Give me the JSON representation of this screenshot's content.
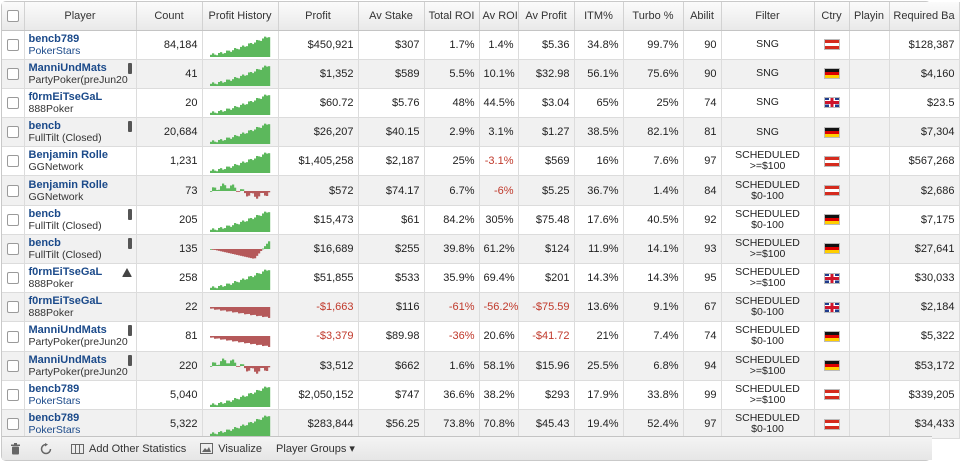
{
  "columns": {
    "player": "Player",
    "count": "Count",
    "history": "Profit History",
    "profit": "Profit",
    "av_stake": "Av Stake",
    "total_roi": "Total ROI",
    "av_roi": "Av ROI",
    "av_profit": "Av Profit",
    "itm": "ITM%",
    "turbo": "Turbo %",
    "ability": "Abilit",
    "filter": "Filter",
    "ctry": "Ctry",
    "playing": "Playin",
    "required": "Required Ba"
  },
  "rows": [
    {
      "name": "bencb789",
      "network": "PokerStars",
      "net_link": true,
      "tag": "",
      "count": "84,184",
      "trend": "up",
      "profit": "$450,921",
      "profit_neg": false,
      "av_stake": "$307",
      "total_roi": "1.7%",
      "total_roi_neg": false,
      "av_roi": "1.4%",
      "av_roi_neg": false,
      "av_profit": "$5.36",
      "av_profit_neg": false,
      "itm": "34.8%",
      "turbo": "99.7%",
      "ability": "90",
      "filter1": "SNG",
      "filter2": "",
      "flag": "at",
      "required": "$128,387",
      "remove": "x"
    },
    {
      "name": "ManniUndMats",
      "network": "PartyPoker(preJun20",
      "net_link": false,
      "tag": "bar",
      "count": "41",
      "trend": "up",
      "profit": "$1,352",
      "profit_neg": false,
      "av_stake": "$589",
      "total_roi": "5.5%",
      "total_roi_neg": false,
      "av_roi": "10.1%",
      "av_roi_neg": false,
      "av_profit": "$32.98",
      "av_profit_neg": false,
      "itm": "56.1%",
      "turbo": "75.6%",
      "ability": "90",
      "filter1": "SNG",
      "filter2": "",
      "flag": "de",
      "required": "$4,160",
      "remove": "x"
    },
    {
      "name": "f0rmEiTseGaL",
      "network": "888Poker",
      "net_link": false,
      "tag": "",
      "count": "20",
      "trend": "up",
      "profit": "$60.72",
      "profit_neg": false,
      "av_stake": "$5.76",
      "total_roi": "48%",
      "total_roi_neg": false,
      "av_roi": "44.5%",
      "av_roi_neg": false,
      "av_profit": "$3.04",
      "av_profit_neg": false,
      "itm": "65%",
      "turbo": "25%",
      "ability": "74",
      "filter1": "SNG",
      "filter2": "",
      "flag": "gb",
      "required": "$23.5",
      "remove": "x"
    },
    {
      "name": "bencb",
      "network": "FullTilt (Closed)",
      "net_link": false,
      "tag": "bar",
      "count": "20,684",
      "trend": "up",
      "profit": "$26,207",
      "profit_neg": false,
      "av_stake": "$40.15",
      "total_roi": "2.9%",
      "total_roi_neg": false,
      "av_roi": "3.1%",
      "av_roi_neg": false,
      "av_profit": "$1.27",
      "av_profit_neg": false,
      "itm": "38.5%",
      "turbo": "82.1%",
      "ability": "81",
      "filter1": "SNG",
      "filter2": "",
      "flag": "de",
      "required": "$7,304",
      "remove": "x"
    },
    {
      "name": "Benjamin Rolle",
      "network": "GGNetwork",
      "net_link": false,
      "tag": "",
      "count": "1,231",
      "trend": "up",
      "profit": "$1,405,258",
      "profit_neg": false,
      "av_stake": "$2,187",
      "total_roi": "25%",
      "total_roi_neg": false,
      "av_roi": "-3.1%",
      "av_roi_neg": true,
      "av_profit": "$569",
      "av_profit_neg": false,
      "itm": "16%",
      "turbo": "7.6%",
      "ability": "97",
      "filter1": "SCHEDULED",
      "filter2": ">=$100",
      "flag": "at",
      "required": "$567,268",
      "remove": "x"
    },
    {
      "name": "Benjamin Rolle",
      "network": "GGNetwork",
      "net_link": false,
      "tag": "",
      "count": "73",
      "trend": "mixed",
      "profit": "$572",
      "profit_neg": false,
      "av_stake": "$74.17",
      "total_roi": "6.7%",
      "total_roi_neg": false,
      "av_roi": "-6%",
      "av_roi_neg": true,
      "av_profit": "$5.25",
      "av_profit_neg": false,
      "itm": "36.7%",
      "turbo": "1.4%",
      "ability": "84",
      "filter1": "SCHEDULED",
      "filter2": "$0-100",
      "flag": "at",
      "required": "$2,686",
      "remove": "x"
    },
    {
      "name": "bencb",
      "network": "FullTilt (Closed)",
      "net_link": false,
      "tag": "bar",
      "count": "205",
      "trend": "up",
      "profit": "$15,473",
      "profit_neg": false,
      "av_stake": "$61",
      "total_roi": "84.2%",
      "total_roi_neg": false,
      "av_roi": "305%",
      "av_roi_neg": false,
      "av_profit": "$75.48",
      "av_profit_neg": false,
      "itm": "17.6%",
      "turbo": "40.5%",
      "ability": "92",
      "filter1": "SCHEDULED",
      "filter2": "$0-100",
      "flag": "de",
      "required": "$7,175",
      "remove": "x"
    },
    {
      "name": "bencb",
      "network": "FullTilt (Closed)",
      "net_link": false,
      "tag": "bar",
      "count": "135",
      "trend": "downup",
      "profit": "$16,689",
      "profit_neg": false,
      "av_stake": "$255",
      "total_roi": "39.8%",
      "total_roi_neg": false,
      "av_roi": "61.2%",
      "av_roi_neg": false,
      "av_profit": "$124",
      "av_profit_neg": false,
      "itm": "11.9%",
      "turbo": "14.1%",
      "ability": "93",
      "filter1": "SCHEDULED",
      "filter2": ">=$100",
      "flag": "de",
      "required": "$27,641",
      "remove": "x"
    },
    {
      "name": "f0rmEiTseGaL",
      "network": "888Poker",
      "net_link": false,
      "tag": "tri",
      "count": "258",
      "trend": "up",
      "profit": "$51,855",
      "profit_neg": false,
      "av_stake": "$533",
      "total_roi": "35.9%",
      "total_roi_neg": false,
      "av_roi": "69.4%",
      "av_roi_neg": false,
      "av_profit": "$201",
      "av_profit_neg": false,
      "itm": "14.3%",
      "turbo": "14.3%",
      "ability": "95",
      "filter1": "SCHEDULED",
      "filter2": ">=$100",
      "flag": "gb",
      "required": "$30,033",
      "remove": "x"
    },
    {
      "name": "f0rmEiTseGaL",
      "network": "888Poker",
      "net_link": false,
      "tag": "",
      "count": "22",
      "trend": "down",
      "profit": "-$1,663",
      "profit_neg": true,
      "av_stake": "$116",
      "total_roi": "-61%",
      "total_roi_neg": true,
      "av_roi": "-56.2%",
      "av_roi_neg": true,
      "av_profit": "-$75.59",
      "av_profit_neg": true,
      "itm": "13.6%",
      "turbo": "9.1%",
      "ability": "67",
      "filter1": "SCHEDULED",
      "filter2": "$0-100",
      "flag": "gb",
      "required": "$2,184",
      "remove": "x"
    },
    {
      "name": "ManniUndMats",
      "network": "PartyPoker(preJun20",
      "net_link": false,
      "tag": "bar",
      "count": "81",
      "trend": "down",
      "profit": "-$3,379",
      "profit_neg": true,
      "av_stake": "$89.98",
      "total_roi": "-36%",
      "total_roi_neg": true,
      "av_roi": "20.6%",
      "av_roi_neg": false,
      "av_profit": "-$41.72",
      "av_profit_neg": true,
      "itm": "21%",
      "turbo": "7.4%",
      "ability": "74",
      "filter1": "SCHEDULED",
      "filter2": "$0-100",
      "flag": "de",
      "required": "$5,322",
      "remove": "x"
    },
    {
      "name": "ManniUndMats",
      "network": "PartyPoker(preJun20",
      "net_link": false,
      "tag": "bar",
      "count": "220",
      "trend": "mixed",
      "profit": "$3,512",
      "profit_neg": false,
      "av_stake": "$662",
      "total_roi": "1.6%",
      "total_roi_neg": false,
      "av_roi": "58.1%",
      "av_roi_neg": false,
      "av_profit": "$15.96",
      "av_profit_neg": false,
      "itm": "25.5%",
      "turbo": "6.8%",
      "ability": "94",
      "filter1": "SCHEDULED",
      "filter2": ">=$100",
      "flag": "de",
      "required": "$53,172",
      "remove": "x"
    },
    {
      "name": "bencb789",
      "network": "PokerStars",
      "net_link": true,
      "tag": "",
      "count": "5,040",
      "trend": "up",
      "profit": "$2,050,152",
      "profit_neg": false,
      "av_stake": "$747",
      "total_roi": "36.6%",
      "total_roi_neg": false,
      "av_roi": "38.2%",
      "av_roi_neg": false,
      "av_profit": "$293",
      "av_profit_neg": false,
      "itm": "17.9%",
      "turbo": "33.8%",
      "ability": "99",
      "filter1": "SCHEDULED",
      "filter2": ">=$100",
      "flag": "at",
      "required": "$339,205",
      "remove": "x"
    },
    {
      "name": "bencb789",
      "network": "PokerStars",
      "net_link": true,
      "tag": "",
      "count": "5,322",
      "trend": "up",
      "profit": "$283,844",
      "profit_neg": false,
      "av_stake": "$56.25",
      "total_roi": "73.8%",
      "total_roi_neg": false,
      "av_roi": "70.8%",
      "av_roi_neg": false,
      "av_profit": "$45.43",
      "av_profit_neg": false,
      "itm": "19.4%",
      "turbo": "52.4%",
      "ability": "97",
      "filter1": "SCHEDULED",
      "filter2": "$0-100",
      "flag": "at",
      "required": "$34,433",
      "remove": "x"
    }
  ],
  "footer": {
    "add_stats": "Add Other Statistics",
    "visualize": "Visualize",
    "player_groups": "Player Groups ▾"
  },
  "colors": {
    "positive": "#5cb85c",
    "negative": "#b5595a",
    "link": "#1b4a8a"
  }
}
